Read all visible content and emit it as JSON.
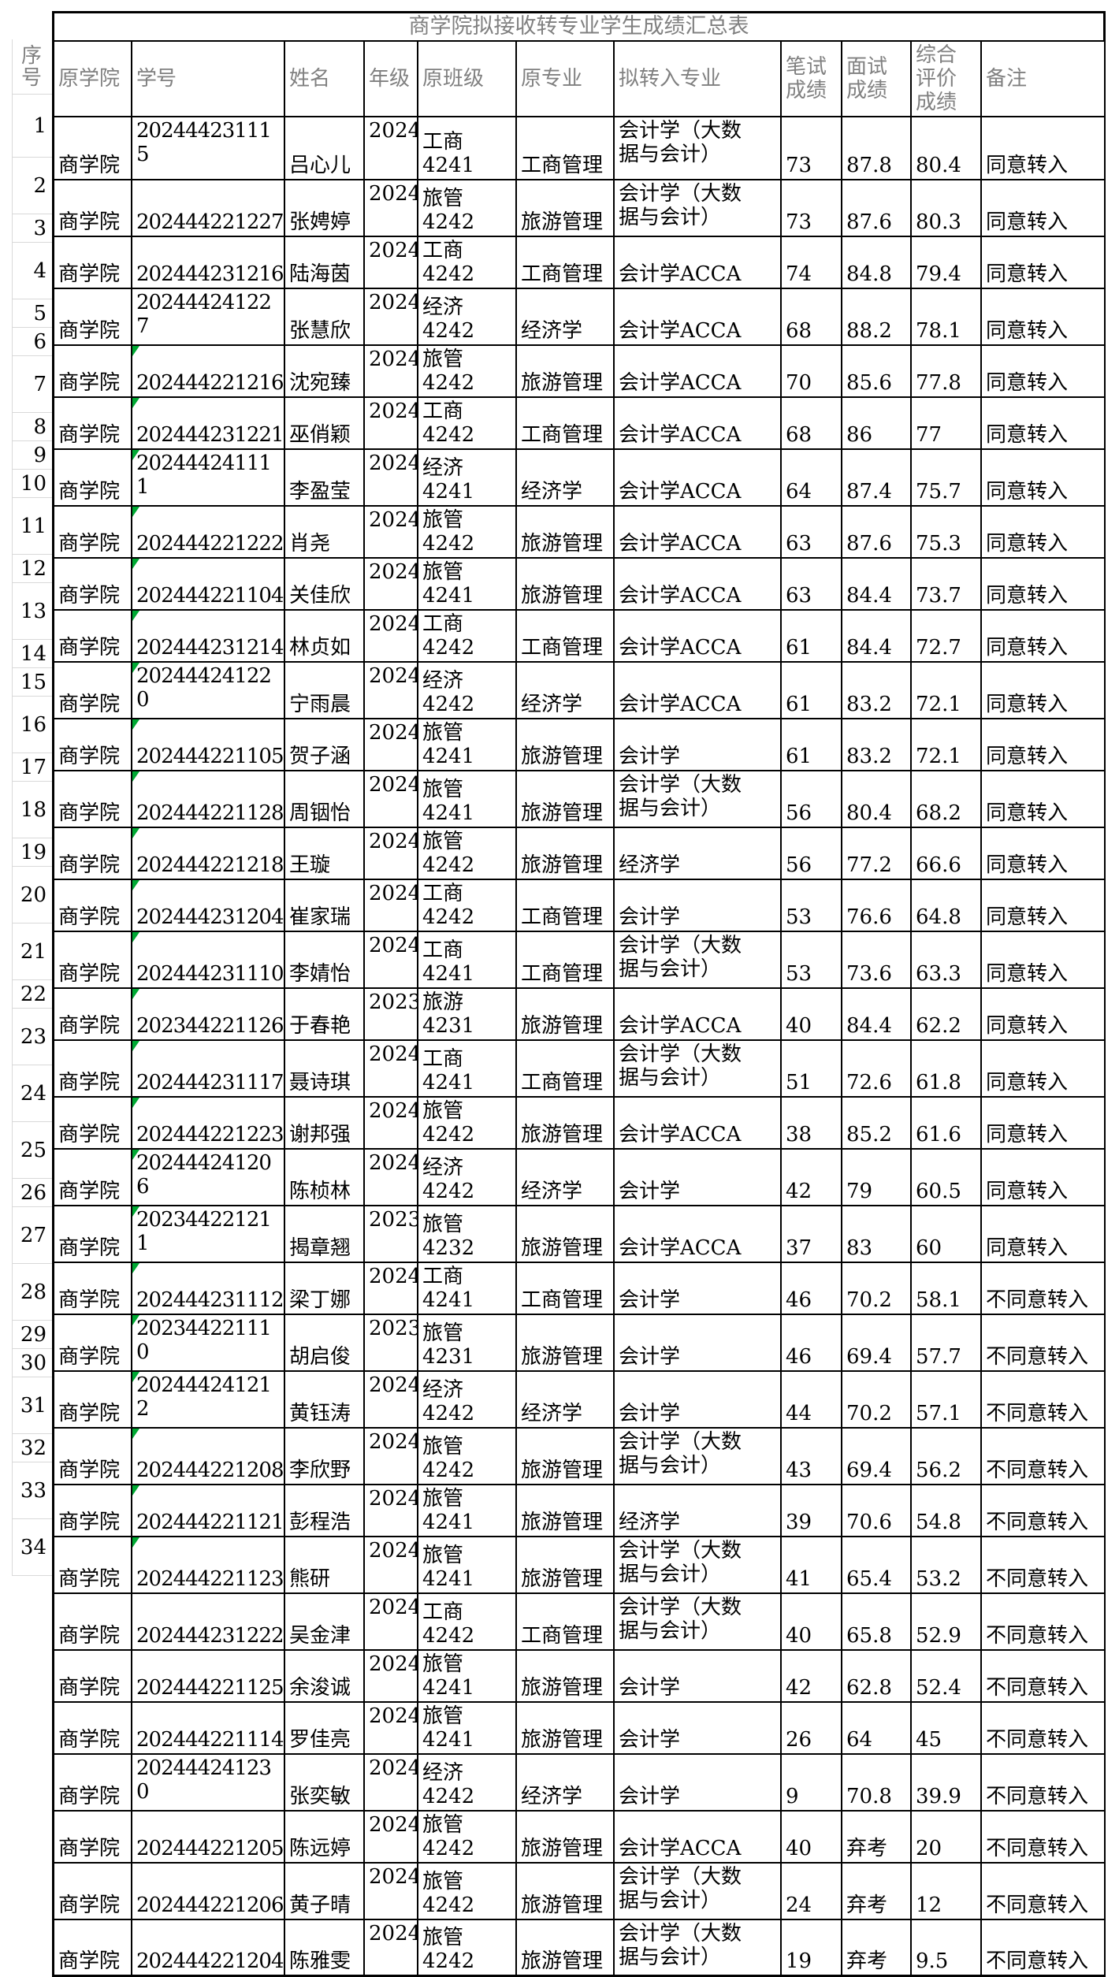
{
  "title": "商学院拟接收转专业学生成绩汇总表",
  "seq_header": "序\n号",
  "colors": {
    "grid_border": "#000000",
    "header_text": "#808080",
    "body_text": "#000000",
    "seq_gridline": "#d9d9d9",
    "error_indicator": "#00a933"
  },
  "columns": [
    {
      "key": "college",
      "label": "原学院"
    },
    {
      "key": "id",
      "label": "学号"
    },
    {
      "key": "name",
      "label": "姓名"
    },
    {
      "key": "grade",
      "label": "年级"
    },
    {
      "key": "cls",
      "label": "原班级"
    },
    {
      "key": "major",
      "label": "原专业"
    },
    {
      "key": "target",
      "label": "拟转入专业"
    },
    {
      "key": "written",
      "label": "笔试成绩"
    },
    {
      "key": "interview",
      "label": "面试成绩"
    },
    {
      "key": "comp",
      "label": "综合评价成绩"
    },
    {
      "key": "remark",
      "label": "备注"
    }
  ],
  "rows": [
    {
      "seq": "1",
      "college": "商学院",
      "id": "20244423111\n5",
      "name": "吕心儿",
      "grade": "2024",
      "cls": "工商4241",
      "major": "工商管理",
      "target": "会计学（大数\n据与会计）",
      "written": "73",
      "interview": "87.8",
      "comp": "80.4",
      "remark": "同意转入",
      "h": "x",
      "tri": false
    },
    {
      "seq": "2",
      "college": "商学院",
      "id": "202444221227",
      "name": "张娉婷",
      "grade": "2024",
      "cls": "旅管4242",
      "major": "旅游管理",
      "target": "会计学（大数\n据与会计）",
      "written": "73",
      "interview": "87.6",
      "comp": "80.3",
      "remark": "同意转入",
      "h": "t",
      "tri": false
    },
    {
      "seq": "3",
      "college": "商学院",
      "id": "202444231216",
      "name": "陆海茵",
      "grade": "2024",
      "cls": "工商4242",
      "major": "工商管理",
      "target": "会计学ACCA",
      "written": "74",
      "interview": "84.8",
      "comp": "79.4",
      "remark": "同意转入",
      "h": "s",
      "tri": false
    },
    {
      "seq": "4",
      "college": "商学院",
      "id": "20244424122\n7",
      "name": "张慧欣",
      "grade": "2024",
      "cls": "经济4242",
      "major": "经济学",
      "target": "会计学ACCA",
      "written": "68",
      "interview": "88.2",
      "comp": "78.1",
      "remark": "同意转入",
      "h": "t",
      "tri": false
    },
    {
      "seq": "5",
      "college": "商学院",
      "id": "202444221216",
      "name": "沈宛臻",
      "grade": "2024",
      "cls": "旅管4242",
      "major": "旅游管理",
      "target": "会计学ACCA",
      "written": "70",
      "interview": "85.6",
      "comp": "77.8",
      "remark": "同意转入",
      "h": "s",
      "tri": true
    },
    {
      "seq": "6",
      "college": "商学院",
      "id": "202444231221",
      "name": "巫俏颖",
      "grade": "2024",
      "cls": "工商4242",
      "major": "工商管理",
      "target": "会计学ACCA",
      "written": "68",
      "interview": "86",
      "comp": "77",
      "remark": "同意转入",
      "h": "s",
      "tri": true
    },
    {
      "seq": "7",
      "college": "商学院",
      "id": "20244424111\n1",
      "name": "李盈莹",
      "grade": "2024",
      "cls": "经济4241",
      "major": "经济学",
      "target": "会计学ACCA",
      "written": "64",
      "interview": "87.4",
      "comp": "75.7",
      "remark": "同意转入",
      "h": "t",
      "tri": true
    },
    {
      "seq": "8",
      "college": "商学院",
      "id": "202444221222",
      "name": "肖尧",
      "grade": "2024",
      "cls": "旅管4242",
      "major": "旅游管理",
      "target": "会计学ACCA",
      "written": "63",
      "interview": "87.6",
      "comp": "75.3",
      "remark": "同意转入",
      "h": "s",
      "tri": true
    },
    {
      "seq": "9",
      "college": "商学院",
      "id": "202444221104",
      "name": "关佳欣",
      "grade": "2024",
      "cls": "旅管4241",
      "major": "旅游管理",
      "target": "会计学ACCA",
      "written": "63",
      "interview": "84.4",
      "comp": "73.7",
      "remark": "同意转入",
      "h": "s",
      "tri": true
    },
    {
      "seq": "10",
      "college": "商学院",
      "id": "202444231214",
      "name": "林贞如",
      "grade": "2024",
      "cls": "工商4242",
      "major": "工商管理",
      "target": "会计学ACCA",
      "written": "61",
      "interview": "84.4",
      "comp": "72.7",
      "remark": "同意转入",
      "h": "s",
      "tri": true
    },
    {
      "seq": "11",
      "college": "商学院",
      "id": "20244424122\n0",
      "name": "宁雨晨",
      "grade": "2024",
      "cls": "经济4242",
      "major": "经济学",
      "target": "会计学ACCA",
      "written": "61",
      "interview": "83.2",
      "comp": "72.1",
      "remark": "同意转入",
      "h": "t",
      "tri": true
    },
    {
      "seq": "12",
      "college": "商学院",
      "id": "202444221105",
      "name": "贺子涵",
      "grade": "2024",
      "cls": "旅管4241",
      "major": "旅游管理",
      "target": "会计学",
      "written": "61",
      "interview": "83.2",
      "comp": "72.1",
      "remark": "同意转入",
      "h": "s",
      "tri": true
    },
    {
      "seq": "13",
      "college": "商学院",
      "id": "202444221128",
      "name": "周铟怡",
      "grade": "2024",
      "cls": "旅管4241",
      "major": "旅游管理",
      "target": "会计学（大数\n据与会计）",
      "written": "56",
      "interview": "80.4",
      "comp": "68.2",
      "remark": "同意转入",
      "h": "t",
      "tri": true
    },
    {
      "seq": "14",
      "college": "商学院",
      "id": "202444221218",
      "name": "王璇",
      "grade": "2024",
      "cls": "旅管4242",
      "major": "旅游管理",
      "target": "经济学",
      "written": "56",
      "interview": "77.2",
      "comp": "66.6",
      "remark": "同意转入",
      "h": "s",
      "tri": true
    },
    {
      "seq": "15",
      "college": "商学院",
      "id": "202444231204",
      "name": "崔家瑞",
      "grade": "2024",
      "cls": "工商4242",
      "major": "工商管理",
      "target": "会计学",
      "written": "53",
      "interview": "76.6",
      "comp": "64.8",
      "remark": "同意转入",
      "h": "s",
      "tri": true
    },
    {
      "seq": "16",
      "college": "商学院",
      "id": "202444231110",
      "name": "李婧怡",
      "grade": "2024",
      "cls": "工商4241",
      "major": "工商管理",
      "target": "会计学（大数\n据与会计）",
      "written": "53",
      "interview": "73.6",
      "comp": "63.3",
      "remark": "同意转入",
      "h": "t",
      "tri": true
    },
    {
      "seq": "17",
      "college": "商学院",
      "id": "202344221126",
      "name": "于春艳",
      "grade": "2023",
      "cls": "旅游4231",
      "major": "旅游管理",
      "target": "会计学ACCA",
      "written": "40",
      "interview": "84.4",
      "comp": "62.2",
      "remark": "同意转入",
      "h": "s",
      "tri": true
    },
    {
      "seq": "18",
      "college": "商学院",
      "id": "202444231117",
      "name": "聂诗琪",
      "grade": "2024",
      "cls": "工商4241",
      "major": "工商管理",
      "target": "会计学（大数\n据与会计）",
      "written": "51",
      "interview": "72.6",
      "comp": "61.8",
      "remark": "同意转入",
      "h": "t",
      "tri": true
    },
    {
      "seq": "19",
      "college": "商学院",
      "id": "202444221223",
      "name": "谢邦强",
      "grade": "2024",
      "cls": "旅管4242",
      "major": "旅游管理",
      "target": "会计学ACCA",
      "written": "38",
      "interview": "85.2",
      "comp": "61.6",
      "remark": "同意转入",
      "h": "s",
      "tri": true
    },
    {
      "seq": "20",
      "college": "商学院",
      "id": "20244424120\n6",
      "name": "陈桢林",
      "grade": "2024",
      "cls": "经济4242",
      "major": "经济学",
      "target": "会计学",
      "written": "42",
      "interview": "79",
      "comp": "60.5",
      "remark": "同意转入",
      "h": "t",
      "tri": true
    },
    {
      "seq": "21",
      "college": "商学院",
      "id": "20234422121\n1",
      "name": "揭章翘",
      "grade": "2023",
      "cls": "旅管4232",
      "major": "旅游管理",
      "target": "会计学ACCA",
      "written": "37",
      "interview": "83",
      "comp": "60",
      "remark": "同意转入",
      "h": "t",
      "tri": true
    },
    {
      "seq": "22",
      "college": "商学院",
      "id": "202444231112",
      "name": "梁丁娜",
      "grade": "2024",
      "cls": "工商4241",
      "major": "工商管理",
      "target": "会计学",
      "written": "46",
      "interview": "70.2",
      "comp": "58.1",
      "remark": "不同意转入",
      "h": "s",
      "tri": true
    },
    {
      "seq": "23",
      "college": "商学院",
      "id": "20234422111\n0",
      "name": "胡启俊",
      "grade": "2023",
      "cls": "旅管4231",
      "major": "旅游管理",
      "target": "会计学",
      "written": "46",
      "interview": "69.4",
      "comp": "57.7",
      "remark": "不同意转入",
      "h": "t",
      "tri": true
    },
    {
      "seq": "24",
      "college": "商学院",
      "id": "20244424121\n2",
      "name": "黄钰涛",
      "grade": "2024",
      "cls": "经济4242",
      "major": "经济学",
      "target": "会计学",
      "written": "44",
      "interview": "70.2",
      "comp": "57.1",
      "remark": "不同意转入",
      "h": "t",
      "tri": true
    },
    {
      "seq": "25",
      "college": "商学院",
      "id": "202444221208",
      "name": "李欣野",
      "grade": "2024",
      "cls": "旅管4242",
      "major": "旅游管理",
      "target": "会计学（大数\n据与会计）",
      "written": "43",
      "interview": "69.4",
      "comp": "56.2",
      "remark": "不同意转入",
      "h": "t",
      "tri": true
    },
    {
      "seq": "26",
      "college": "商学院",
      "id": "202444221121",
      "name": "彭程浩",
      "grade": "2024",
      "cls": "旅管4241",
      "major": "旅游管理",
      "target": "经济学",
      "written": "39",
      "interview": "70.6",
      "comp": "54.8",
      "remark": "不同意转入",
      "h": "s",
      "tri": true
    },
    {
      "seq": "27",
      "college": "商学院",
      "id": "202444221123",
      "name": "熊研",
      "grade": "2024",
      "cls": "旅管4241",
      "major": "旅游管理",
      "target": "会计学（大数\n据与会计）",
      "written": "41",
      "interview": "65.4",
      "comp": "53.2",
      "remark": "不同意转入",
      "h": "t",
      "tri": true
    },
    {
      "seq": "28",
      "college": "商学院",
      "id": "202444231222",
      "name": "吴金津",
      "grade": "2024",
      "cls": "工商4242",
      "major": "工商管理",
      "target": "会计学（大数\n据与会计）",
      "written": "40",
      "interview": "65.8",
      "comp": "52.9",
      "remark": "不同意转入",
      "h": "t",
      "tri": false
    },
    {
      "seq": "29",
      "college": "商学院",
      "id": "202444221125",
      "name": "余浚诚",
      "grade": "2024",
      "cls": "旅管4241",
      "major": "旅游管理",
      "target": "会计学",
      "written": "42",
      "interview": "62.8",
      "comp": "52.4",
      "remark": "不同意转入",
      "h": "s",
      "tri": false
    },
    {
      "seq": "30",
      "college": "商学院",
      "id": "202444221114",
      "name": "罗佳亮",
      "grade": "2024",
      "cls": "旅管4241",
      "major": "旅游管理",
      "target": "会计学",
      "written": "26",
      "interview": "64",
      "comp": "45",
      "remark": "不同意转入",
      "h": "s",
      "tri": false
    },
    {
      "seq": "31",
      "college": "商学院",
      "id": "20244424123\n0",
      "name": "张奕敏",
      "grade": "2024",
      "cls": "经济4242",
      "major": "经济学",
      "target": "会计学",
      "written": "9",
      "interview": "70.8",
      "comp": "39.9",
      "remark": "不同意转入",
      "h": "t",
      "tri": false
    },
    {
      "seq": "32",
      "college": "商学院",
      "id": "202444221205",
      "name": "陈远婷",
      "grade": "2024",
      "cls": "旅管4242",
      "major": "旅游管理",
      "target": "会计学ACCA",
      "written": "40",
      "interview": "弃考",
      "comp": "20",
      "remark": "不同意转入",
      "h": "s",
      "tri": false
    },
    {
      "seq": "33",
      "college": "商学院",
      "id": "202444221206",
      "name": "黄子晴",
      "grade": "2024",
      "cls": "旅管4242",
      "major": "旅游管理",
      "target": "会计学（大数\n据与会计）",
      "written": "24",
      "interview": "弃考",
      "comp": "12",
      "remark": "不同意转入",
      "h": "t",
      "tri": false
    },
    {
      "seq": "34",
      "college": "商学院",
      "id": "202444221204",
      "name": "陈雅雯",
      "grade": "2024",
      "cls": "旅管4242",
      "major": "旅游管理",
      "target": "会计学（大数\n据与会计）",
      "written": "19",
      "interview": "弃考",
      "comp": "9.5",
      "remark": "不同意转入",
      "h": "t",
      "tri": false
    }
  ]
}
